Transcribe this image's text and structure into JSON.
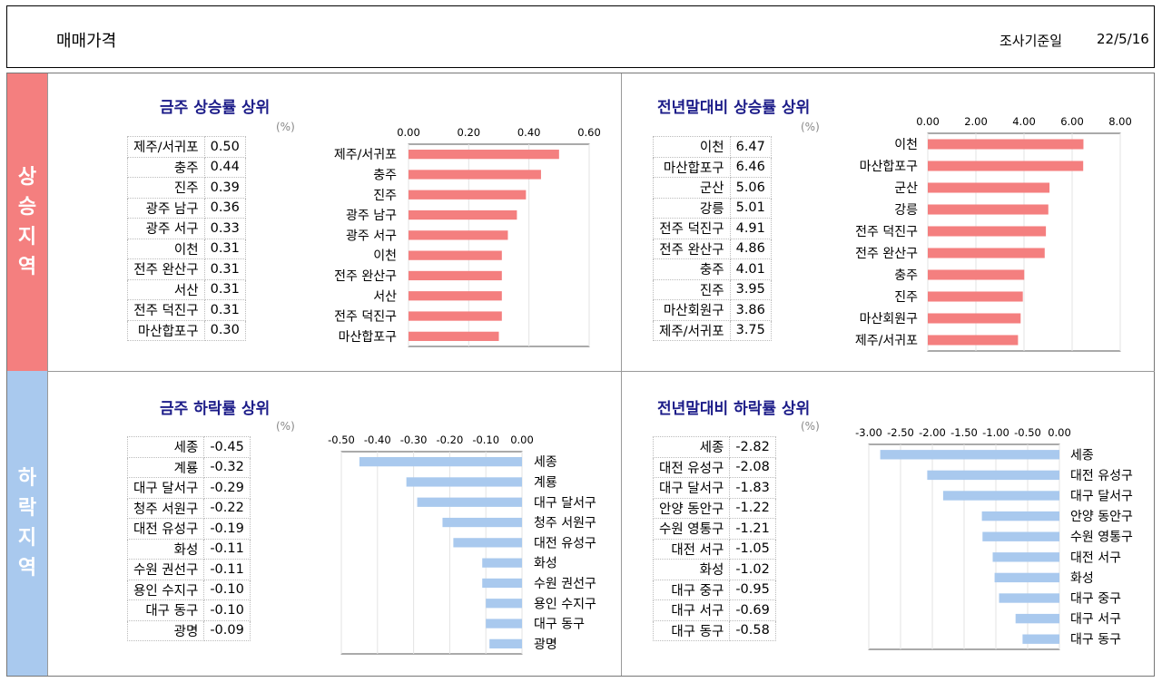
{
  "header": {
    "title": "매매가격",
    "date_label": "조사기준일",
    "date_value": "22/5/16"
  },
  "bands": {
    "up": [
      "상",
      "승",
      "지",
      "역"
    ],
    "down": [
      "하",
      "락",
      "지",
      "역"
    ]
  },
  "colors": {
    "up_bar": "#f47f7f",
    "down_bar": "#a9c9ee",
    "title": "#1b1b88"
  },
  "chart_data": [
    {
      "type": "bar",
      "title": "금주 상승률 상위",
      "unit": "(%)",
      "categories": [
        "제주/서귀포",
        "충주",
        "진주",
        "광주 남구",
        "광주 서구",
        "이천",
        "전주 완산구",
        "서산",
        "전주 덕진구",
        "마산합포구"
      ],
      "values": [
        0.5,
        0.44,
        0.39,
        0.36,
        0.33,
        0.31,
        0.31,
        0.31,
        0.31,
        0.3
      ],
      "value_labels": [
        "0.50",
        "0.44",
        "0.39",
        "0.36",
        "0.33",
        "0.31",
        "0.31",
        "0.31",
        "0.31",
        "0.30"
      ],
      "xlim": [
        0,
        0.6
      ],
      "ticks": [
        "0.00",
        "0.20",
        "0.40",
        "0.60"
      ],
      "tick_values": [
        0,
        0.2,
        0.4,
        0.6
      ]
    },
    {
      "type": "bar",
      "title": "전년말대비 상승률 상위",
      "unit": "(%)",
      "categories": [
        "이천",
        "마산합포구",
        "군산",
        "강릉",
        "전주 덕진구",
        "전주 완산구",
        "충주",
        "진주",
        "마산회원구",
        "제주/서귀포"
      ],
      "values": [
        6.47,
        6.46,
        5.06,
        5.01,
        4.91,
        4.86,
        4.01,
        3.95,
        3.86,
        3.75
      ],
      "value_labels": [
        "6.47",
        "6.46",
        "5.06",
        "5.01",
        "4.91",
        "4.86",
        "4.01",
        "3.95",
        "3.86",
        "3.75"
      ],
      "xlim": [
        0,
        8
      ],
      "ticks": [
        "0.00",
        "2.00",
        "4.00",
        "6.00",
        "8.00"
      ],
      "tick_values": [
        0,
        2,
        4,
        6,
        8
      ]
    },
    {
      "type": "bar",
      "title": "금주 하락률 상위",
      "unit": "(%)",
      "categories": [
        "세종",
        "계룡",
        "대구 달서구",
        "청주 서원구",
        "대전 유성구",
        "화성",
        "수원 권선구",
        "용인 수지구",
        "대구 동구",
        "광명"
      ],
      "values": [
        -0.45,
        -0.32,
        -0.29,
        -0.22,
        -0.19,
        -0.11,
        -0.11,
        -0.1,
        -0.1,
        -0.09
      ],
      "value_labels": [
        "-0.45",
        "-0.32",
        "-0.29",
        "-0.22",
        "-0.19",
        "-0.11",
        "-0.11",
        "-0.10",
        "-0.10",
        "-0.09"
      ],
      "xlim": [
        -0.5,
        0
      ],
      "ticks": [
        "-0.50",
        "-0.40",
        "-0.30",
        "-0.20",
        "-0.10",
        "0.00"
      ],
      "tick_values": [
        -0.5,
        -0.4,
        -0.3,
        -0.2,
        -0.1,
        0
      ]
    },
    {
      "type": "bar",
      "title": "전년말대비 하락률 상위",
      "unit": "(%)",
      "categories": [
        "세종",
        "대전 유성구",
        "대구 달서구",
        "안양 동안구",
        "수원 영통구",
        "대전 서구",
        "화성",
        "대구 중구",
        "대구 서구",
        "대구 동구"
      ],
      "values": [
        -2.82,
        -2.08,
        -1.83,
        -1.22,
        -1.21,
        -1.05,
        -1.02,
        -0.95,
        -0.69,
        -0.58
      ],
      "value_labels": [
        "-2.82",
        "-2.08",
        "-1.83",
        "-1.22",
        "-1.21",
        "-1.05",
        "-1.02",
        "-0.95",
        "-0.69",
        "-0.58"
      ],
      "xlim": [
        -3,
        0
      ],
      "ticks": [
        "-3.00",
        "-2.50",
        "-2.00",
        "-1.50",
        "-1.00",
        "-0.50",
        "0.00"
      ],
      "tick_values": [
        -3,
        -2.5,
        -2,
        -1.5,
        -1,
        -0.5,
        0
      ]
    }
  ]
}
